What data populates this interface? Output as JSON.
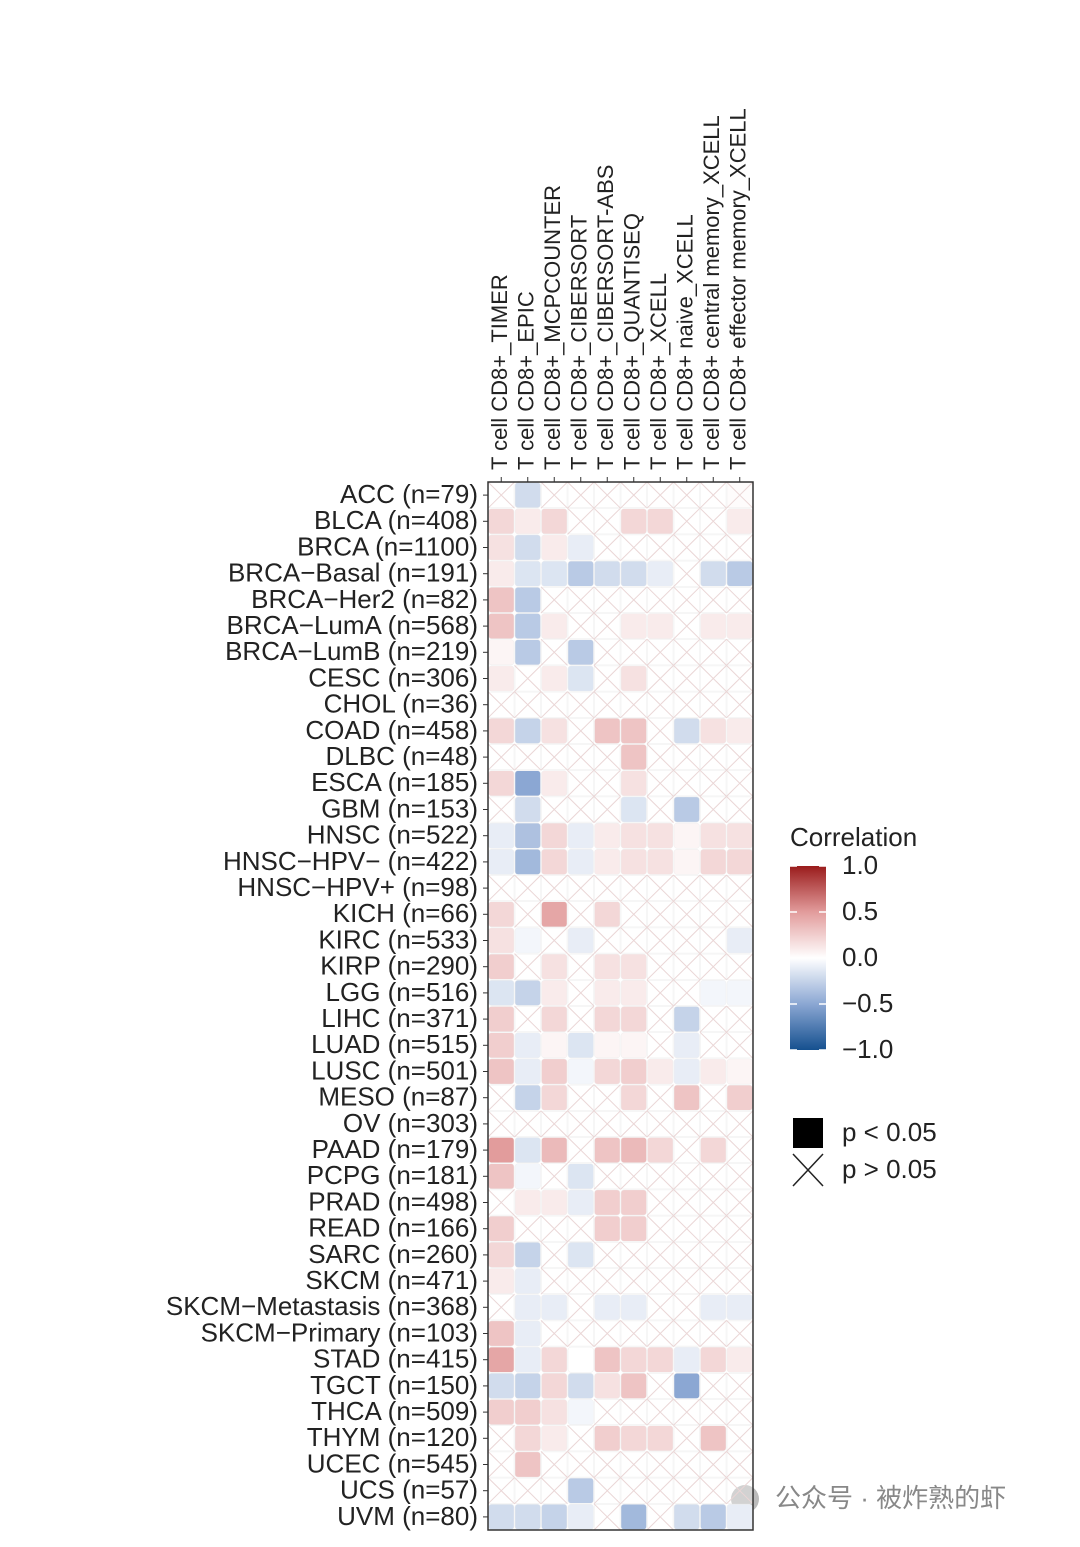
{
  "chart_data": {
    "type": "heatmap",
    "columns": [
      "T cell CD8+_TIMER",
      "T cell CD8+_EPIC",
      "T cell CD8+_MCPCOUNTER",
      "T cell CD8+_CIBERSORT",
      "T cell CD8+_CIBERSORT-ABS",
      "T cell CD8+_QUANTISEQ",
      "T cell CD8+_XCELL",
      "T cell CD8+ naive_XCELL",
      "T cell CD8+ central memory_XCELL",
      "T cell CD8+ effector memory_XCELL"
    ],
    "rows": [
      "ACC (n=79)",
      "BLCA (n=408)",
      "BRCA (n=1100)",
      "BRCA−Basal (n=191)",
      "BRCA−Her2 (n=82)",
      "BRCA−LumA (n=568)",
      "BRCA−LumB (n=219)",
      "CESC (n=306)",
      "CHOL (n=36)",
      "COAD (n=458)",
      "DLBC (n=48)",
      "ESCA (n=185)",
      "GBM (n=153)",
      "HNSC (n=522)",
      "HNSC−HPV− (n=422)",
      "HNSC−HPV+ (n=98)",
      "KICH (n=66)",
      "KIRC (n=533)",
      "KIRP (n=290)",
      "LGG (n=516)",
      "LIHC (n=371)",
      "LUAD (n=515)",
      "LUSC (n=501)",
      "MESO (n=87)",
      "OV (n=303)",
      "PAAD (n=179)",
      "PCPG (n=181)",
      "PRAD (n=498)",
      "READ (n=166)",
      "SARC (n=260)",
      "SKCM (n=471)",
      "SKCM−Metastasis (n=368)",
      "SKCM−Primary (n=103)",
      "STAD (n=415)",
      "TGCT (n=150)",
      "THCA (n=509)",
      "THYM (n=120)",
      "UCEC (n=545)",
      "UCS (n=57)",
      "UVM (n=80)"
    ],
    "values": [
      [
        0,
        -0.2,
        0,
        0,
        0,
        0,
        0,
        0,
        0,
        0.05
      ],
      [
        0.2,
        0.1,
        0.2,
        0,
        0,
        0.2,
        0.2,
        0,
        0,
        0.1
      ],
      [
        0.15,
        -0.2,
        0.1,
        -0.1,
        0,
        0,
        0,
        0,
        0,
        0
      ],
      [
        0.1,
        -0.15,
        -0.15,
        -0.3,
        -0.2,
        -0.2,
        -0.1,
        0,
        -0.2,
        -0.3
      ],
      [
        0.3,
        -0.3,
        0,
        0,
        0,
        0,
        0,
        0,
        0,
        0
      ],
      [
        0.3,
        -0.3,
        0.1,
        0,
        0,
        0.1,
        0.1,
        0,
        0.1,
        0.1
      ],
      [
        0.05,
        -0.3,
        0,
        -0.3,
        0,
        0,
        0,
        0,
        0,
        0
      ],
      [
        0.1,
        0,
        0.1,
        -0.15,
        0,
        0.15,
        0,
        0,
        0,
        0
      ],
      [
        0,
        0,
        0,
        0,
        0,
        0,
        0,
        0,
        0,
        0
      ],
      [
        0.2,
        -0.25,
        0.15,
        0,
        0.3,
        0.3,
        0,
        -0.2,
        0.15,
        0.1
      ],
      [
        0,
        0,
        0,
        0,
        0,
        0.3,
        0,
        0,
        0,
        0
      ],
      [
        0.2,
        -0.5,
        0.1,
        0,
        0,
        0.15,
        0,
        0,
        0,
        0
      ],
      [
        0,
        -0.2,
        0,
        0,
        0,
        -0.15,
        0,
        -0.3,
        0,
        0
      ],
      [
        -0.1,
        -0.35,
        0.2,
        -0.1,
        0.1,
        0.15,
        0.15,
        0.05,
        0.15,
        0.15
      ],
      [
        -0.1,
        -0.4,
        0.2,
        -0.1,
        0.1,
        0.15,
        0.15,
        0.05,
        0.2,
        0.2
      ],
      [
        0,
        0,
        0,
        0,
        0,
        0,
        0,
        0,
        0,
        0
      ],
      [
        0.2,
        0,
        0.45,
        0,
        0.2,
        0,
        0,
        0,
        0,
        0
      ],
      [
        0.15,
        -0.05,
        0,
        -0.1,
        0,
        0,
        0,
        0,
        0,
        -0.1
      ],
      [
        0.25,
        0,
        0.15,
        0,
        0.15,
        0.15,
        0,
        0,
        0,
        0
      ],
      [
        -0.15,
        -0.25,
        0.1,
        0,
        0.1,
        0.1,
        0,
        0,
        -0.05,
        -0.05
      ],
      [
        0.25,
        0,
        0.2,
        0,
        0.2,
        0.2,
        0,
        -0.25,
        0,
        0
      ],
      [
        0.25,
        -0.1,
        0.05,
        -0.15,
        0.05,
        0.05,
        0,
        -0.1,
        0,
        0
      ],
      [
        0.3,
        -0.1,
        0.25,
        -0.05,
        0.2,
        0.25,
        0.1,
        -0.1,
        0.1,
        0.05
      ],
      [
        0,
        -0.25,
        0.2,
        0,
        0,
        0.2,
        0,
        0.3,
        0,
        0.25
      ],
      [
        0,
        0,
        0,
        0,
        0,
        0,
        0,
        0,
        0,
        0
      ],
      [
        0.5,
        -0.15,
        0.35,
        0,
        0.3,
        0.35,
        0.2,
        0,
        0.2,
        0
      ],
      [
        0.3,
        -0.05,
        0,
        -0.15,
        0,
        0,
        0,
        0,
        0,
        0
      ],
      [
        0,
        0.1,
        0.1,
        -0.1,
        0.25,
        0.25,
        0,
        0,
        0,
        0
      ],
      [
        0.25,
        0,
        0,
        0,
        0.25,
        0.25,
        0,
        0,
        0,
        0
      ],
      [
        0.2,
        -0.25,
        0,
        -0.15,
        0,
        0,
        0,
        0,
        0,
        0
      ],
      [
        0.1,
        -0.1,
        0,
        0,
        0,
        0,
        0,
        0,
        0,
        0
      ],
      [
        0,
        -0.1,
        -0.1,
        0,
        -0.1,
        -0.1,
        0,
        0,
        -0.1,
        -0.1
      ],
      [
        0.3,
        -0.1,
        0,
        0,
        0,
        0,
        0,
        0,
        0,
        0
      ],
      [
        0.45,
        -0.1,
        0.2,
        0,
        0.3,
        0.2,
        0.2,
        -0.1,
        0.2,
        0.1
      ],
      [
        -0.2,
        -0.25,
        0.2,
        -0.2,
        0.15,
        0.3,
        0,
        -0.5,
        0,
        0
      ],
      [
        0.25,
        0.25,
        0.15,
        -0.05,
        0,
        0,
        0,
        0,
        0,
        0
      ],
      [
        0,
        0.2,
        0.1,
        0,
        0.25,
        0.2,
        0.2,
        0,
        0.3,
        0
      ],
      [
        0,
        0.3,
        0,
        0,
        0,
        0,
        0,
        0,
        0,
        0
      ],
      [
        0,
        0,
        0,
        -0.3,
        0,
        0,
        0,
        0,
        0,
        0
      ],
      [
        -0.2,
        -0.2,
        -0.25,
        -0.1,
        0,
        -0.4,
        0,
        -0.2,
        -0.3,
        -0.1
      ]
    ],
    "significant": [
      [
        false,
        true,
        false,
        false,
        false,
        false,
        false,
        false,
        false,
        false
      ],
      [
        true,
        true,
        true,
        false,
        false,
        true,
        true,
        false,
        false,
        true
      ],
      [
        true,
        true,
        true,
        true,
        false,
        false,
        false,
        false,
        false,
        false
      ],
      [
        true,
        true,
        true,
        true,
        true,
        true,
        true,
        false,
        true,
        true
      ],
      [
        true,
        true,
        false,
        false,
        false,
        false,
        false,
        false,
        false,
        false
      ],
      [
        true,
        true,
        true,
        false,
        false,
        true,
        true,
        false,
        true,
        true
      ],
      [
        true,
        true,
        false,
        true,
        false,
        false,
        false,
        false,
        false,
        false
      ],
      [
        true,
        false,
        true,
        true,
        false,
        true,
        false,
        false,
        false,
        false
      ],
      [
        false,
        false,
        false,
        false,
        false,
        false,
        false,
        false,
        false,
        false
      ],
      [
        true,
        true,
        true,
        false,
        true,
        true,
        false,
        true,
        true,
        true
      ],
      [
        false,
        false,
        false,
        false,
        false,
        true,
        false,
        false,
        false,
        false
      ],
      [
        true,
        true,
        true,
        false,
        false,
        true,
        false,
        false,
        false,
        false
      ],
      [
        false,
        true,
        false,
        false,
        false,
        true,
        false,
        true,
        false,
        false
      ],
      [
        true,
        true,
        true,
        true,
        true,
        true,
        true,
        true,
        true,
        true
      ],
      [
        true,
        true,
        true,
        true,
        true,
        true,
        true,
        true,
        true,
        true
      ],
      [
        false,
        false,
        false,
        false,
        false,
        false,
        false,
        false,
        false,
        false
      ],
      [
        true,
        false,
        true,
        false,
        true,
        false,
        false,
        false,
        false,
        false
      ],
      [
        true,
        true,
        false,
        true,
        false,
        false,
        false,
        false,
        false,
        true
      ],
      [
        true,
        false,
        true,
        false,
        true,
        true,
        false,
        false,
        false,
        false
      ],
      [
        true,
        true,
        true,
        false,
        true,
        true,
        false,
        false,
        true,
        true
      ],
      [
        true,
        false,
        true,
        false,
        true,
        true,
        false,
        true,
        false,
        false
      ],
      [
        true,
        true,
        true,
        true,
        true,
        true,
        false,
        true,
        false,
        false
      ],
      [
        true,
        true,
        true,
        true,
        true,
        true,
        true,
        true,
        true,
        true
      ],
      [
        false,
        true,
        true,
        false,
        false,
        true,
        false,
        true,
        false,
        true
      ],
      [
        false,
        false,
        false,
        false,
        false,
        false,
        false,
        false,
        false,
        false
      ],
      [
        true,
        true,
        true,
        false,
        true,
        true,
        true,
        false,
        true,
        false
      ],
      [
        true,
        true,
        false,
        true,
        false,
        false,
        false,
        false,
        false,
        false
      ],
      [
        false,
        true,
        true,
        true,
        true,
        true,
        false,
        false,
        false,
        false
      ],
      [
        true,
        false,
        false,
        false,
        true,
        true,
        false,
        false,
        false,
        false
      ],
      [
        true,
        true,
        false,
        true,
        false,
        false,
        false,
        false,
        false,
        false
      ],
      [
        true,
        true,
        false,
        false,
        false,
        false,
        false,
        false,
        false,
        false
      ],
      [
        false,
        true,
        true,
        false,
        true,
        true,
        false,
        false,
        true,
        true
      ],
      [
        true,
        true,
        false,
        false,
        false,
        false,
        false,
        false,
        false,
        false
      ],
      [
        true,
        true,
        true,
        true,
        true,
        true,
        true,
        true,
        true,
        true
      ],
      [
        true,
        true,
        true,
        true,
        true,
        true,
        false,
        true,
        false,
        false
      ],
      [
        true,
        true,
        true,
        true,
        false,
        false,
        false,
        false,
        false,
        false
      ],
      [
        false,
        true,
        true,
        false,
        true,
        true,
        true,
        false,
        true,
        false
      ],
      [
        false,
        true,
        false,
        false,
        false,
        false,
        false,
        false,
        false,
        false
      ],
      [
        false,
        false,
        false,
        true,
        false,
        false,
        false,
        false,
        false,
        false
      ],
      [
        true,
        true,
        true,
        true,
        false,
        true,
        false,
        true,
        true,
        true
      ]
    ],
    "legend_title": "Correlation",
    "clim": [
      -1,
      1
    ],
    "cticks": [
      {
        "value": 1,
        "label": "1.0"
      },
      {
        "value": 0.5,
        "label": "0.5"
      },
      {
        "value": 0,
        "label": "0.0"
      },
      {
        "value": -0.5,
        "label": "−0.5"
      },
      {
        "value": -1,
        "label": "−1.0"
      }
    ],
    "colorscale": [
      "#15508f",
      "#8ba7d3",
      "#ffffff",
      "#e29c9c",
      "#9a1c1c"
    ],
    "significance_labels": [
      "p < 0.05",
      "p > 0.05"
    ]
  },
  "watermark": "公众号 · 被炸熟的虾"
}
